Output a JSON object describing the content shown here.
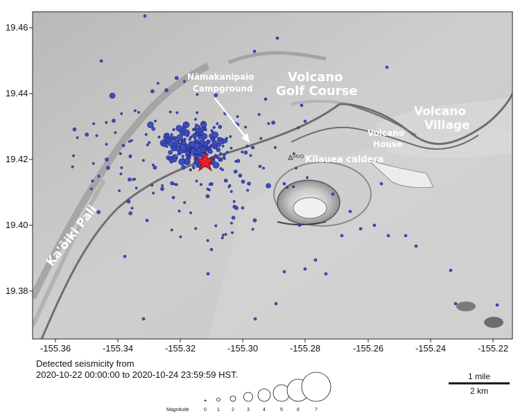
{
  "map": {
    "x_ticks": [
      "-155.36",
      "-155.34",
      "-155.32",
      "-155.30",
      "-155.28",
      "-155.26",
      "-155.24",
      "-155.22"
    ],
    "y_ticks": [
      "19.46",
      "19.44",
      "19.42",
      "19.40",
      "19.38"
    ],
    "places": {
      "namakanipaio_1": "Nāmakanipaio",
      "namakanipaio_2": "Campground",
      "golf_1": "Volcano",
      "golf_2": "Golf Course",
      "village_1": "Volcano",
      "village_2": "Village",
      "house_1": "Volcano",
      "house_2": "House",
      "caldera": "Kīlauea caldera",
      "pali": "Ka'ōiki Pali",
      "hvo": "HVO"
    },
    "colors": {
      "quake_fill": "#3f4fc0",
      "quake_stroke": "#1c257a",
      "mainshock": "#e8202a",
      "road": "#6e6e6e"
    }
  },
  "caption": {
    "line1": "Detected seismicity from",
    "line2": "2020-10-22 00:00:00 to 2020-10-24 23:59:59 HST."
  },
  "legend": {
    "title": "Magnitude",
    "magnitudes": [
      "0",
      "1",
      "2",
      "3",
      "4",
      "5",
      "6",
      "7"
    ]
  },
  "scale_bar": {
    "mile_label": "1 mile",
    "km_label": "2 km"
  }
}
